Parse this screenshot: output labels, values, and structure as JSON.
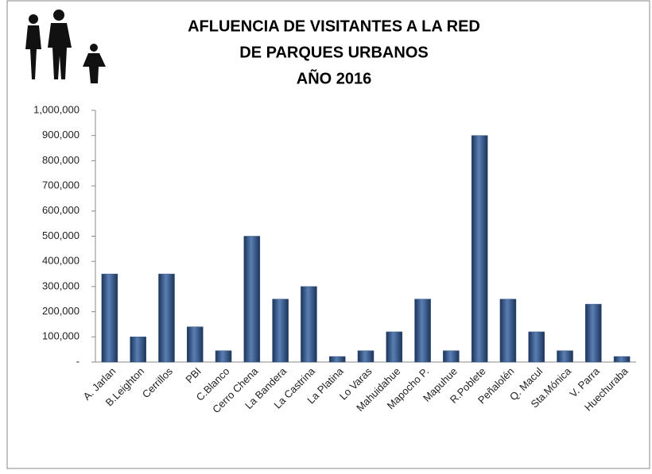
{
  "chart_data": {
    "type": "bar",
    "title": [
      "AFLUENCIA DE VISITANTES A LA RED",
      "DE  PARQUES URBANOS",
      "AÑO 2016"
    ],
    "categories": [
      "A. Jarlan",
      "B.Leighton",
      "Cerrillos",
      "PBI",
      "C.Blanco",
      "Cerro Chena",
      "La Bandera",
      "La Castrina",
      "La Platina",
      "Lo Varas",
      "Mahuidahue",
      "Mapocho P.",
      "Mapuhue",
      "R.Poblete",
      "Peñalolén",
      "Q. Macul",
      "Sta.Mónica",
      "V. Parra",
      "Huechuraba"
    ],
    "values": [
      350000,
      100000,
      350000,
      140000,
      45000,
      500000,
      250000,
      300000,
      22000,
      45000,
      120000,
      250000,
      45000,
      900000,
      250000,
      120000,
      45000,
      230000,
      22000
    ],
    "color": "#2f4f7f",
    "ylim": [
      0,
      1000000
    ],
    "yticks": [
      {
        "value": 0,
        "label": "-"
      },
      {
        "value": 100000,
        "label": "100,000"
      },
      {
        "value": 200000,
        "label": "200,000"
      },
      {
        "value": 300000,
        "label": "300,000"
      },
      {
        "value": 400000,
        "label": "400,000"
      },
      {
        "value": 500000,
        "label": "500,000"
      },
      {
        "value": 600000,
        "label": "600,000"
      },
      {
        "value": 700000,
        "label": "700,000"
      },
      {
        "value": 800000,
        "label": "800,000"
      },
      {
        "value": 900000,
        "label": "900,000"
      },
      {
        "value": 1000000,
        "label": "1,000,000"
      }
    ],
    "grid": false
  }
}
